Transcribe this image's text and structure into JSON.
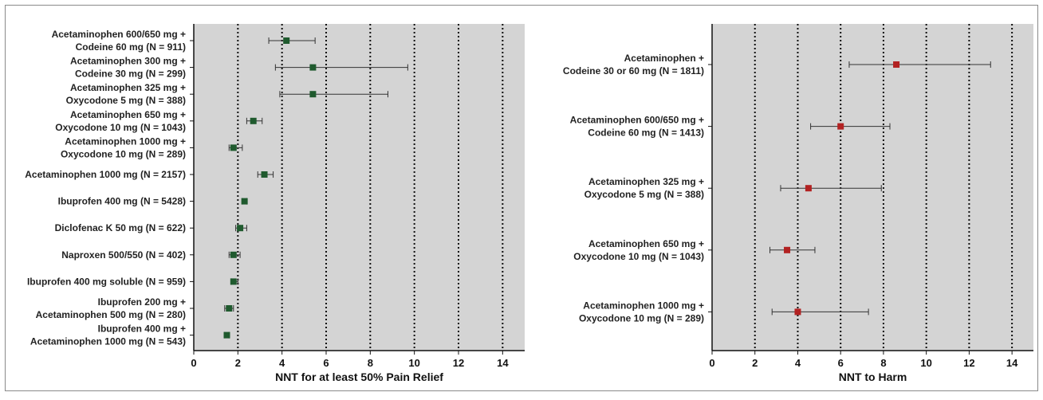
{
  "chart_data": [
    {
      "type": "scatter",
      "subtype": "forest",
      "xlabel": "NNT for at least 50% Pain Relief",
      "xlim": [
        0,
        15
      ],
      "xticks": [
        0,
        2,
        4,
        6,
        8,
        10,
        12,
        14
      ],
      "grid": "vertical dotted",
      "marker_color": "#1f5a2e",
      "background": "#d4d4d4",
      "points": [
        {
          "label": [
            "Acetaminophen 600/650 mg +",
            "Codeine 60 mg (N = 911)"
          ],
          "nnt": 4.2,
          "ci": [
            3.4,
            5.5
          ]
        },
        {
          "label": [
            "Acetaminophen 300 mg +",
            "Codeine 30 mg (N = 299)"
          ],
          "nnt": 5.4,
          "ci": [
            3.7,
            9.7
          ]
        },
        {
          "label": [
            "Acetaminophen 325 mg +",
            "Oxycodone 5 mg (N = 388)"
          ],
          "nnt": 5.4,
          "ci": [
            3.9,
            8.8
          ]
        },
        {
          "label": [
            "Acetaminophen 650 mg +",
            "Oxycodone 10 mg (N = 1043)"
          ],
          "nnt": 2.7,
          "ci": [
            2.4,
            3.1
          ]
        },
        {
          "label": [
            "Acetaminophen 1000 mg +",
            "Oxycodone 10 mg (N = 289)"
          ],
          "nnt": 1.8,
          "ci": [
            1.6,
            2.2
          ]
        },
        {
          "label": [
            "Acetaminophen 1000 mg (N = 2157)"
          ],
          "nnt": 3.2,
          "ci": [
            2.9,
            3.6
          ]
        },
        {
          "label": [
            "Ibuprofen 400 mg (N = 5428)"
          ],
          "nnt": 2.3,
          "ci": [
            2.2,
            2.4
          ]
        },
        {
          "label": [
            "Diclofenac K 50 mg (N = 622)"
          ],
          "nnt": 2.1,
          "ci": [
            1.9,
            2.4
          ]
        },
        {
          "label": [
            "Naproxen 500/550 (N = 402)"
          ],
          "nnt": 1.8,
          "ci": [
            1.6,
            2.1
          ]
        },
        {
          "label": [
            "Ibuprofen 400 mg soluble (N = 959)"
          ],
          "nnt": 1.8,
          "ci": [
            1.7,
            2.0
          ]
        },
        {
          "label": [
            "Ibuprofen 200 mg +",
            "Acetaminophen 500 mg (N = 280)"
          ],
          "nnt": 1.6,
          "ci": [
            1.4,
            1.8
          ]
        },
        {
          "label": [
            "Ibuprofen 400 mg +",
            "Acetaminophen 1000 mg (N = 543)"
          ],
          "nnt": 1.5,
          "ci": [
            1.4,
            1.6
          ]
        }
      ]
    },
    {
      "type": "scatter",
      "subtype": "forest",
      "xlabel": "NNT to Harm",
      "xlim": [
        0,
        15
      ],
      "xticks": [
        0,
        2,
        4,
        6,
        8,
        10,
        12,
        14
      ],
      "grid": "vertical dotted",
      "marker_color": "#b22222",
      "background": "#d4d4d4",
      "points": [
        {
          "label": [
            "Acetaminophen +",
            "Codeine 30 or 60 mg (N = 1811)"
          ],
          "nnt": 8.6,
          "ci": [
            6.4,
            13.0
          ]
        },
        {
          "label": [
            "Acetaminophen 600/650 mg +",
            "Codeine 60 mg (N = 1413)"
          ],
          "nnt": 6.0,
          "ci": [
            4.6,
            8.3
          ]
        },
        {
          "label": [
            "Acetaminophen 325 mg +",
            "Oxycodone 5 mg (N = 388)"
          ],
          "nnt": 4.5,
          "ci": [
            3.2,
            7.9
          ]
        },
        {
          "label": [
            "Acetaminophen 650 mg +",
            "Oxycodone 10 mg (N = 1043)"
          ],
          "nnt": 3.5,
          "ci": [
            2.7,
            4.8
          ]
        },
        {
          "label": [
            "Acetaminophen 1000 mg +",
            "Oxycodone 10 mg (N = 289)"
          ],
          "nnt": 4.0,
          "ci": [
            2.8,
            7.3
          ]
        }
      ]
    }
  ]
}
